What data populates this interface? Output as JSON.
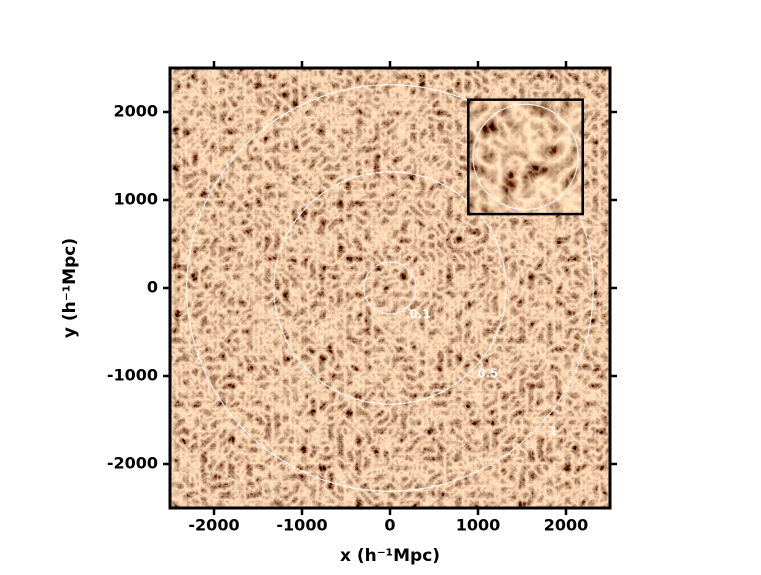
{
  "chart_data": {
    "type": "density-map",
    "xlabel": "x (h⁻¹Mpc)",
    "ylabel": "y (h⁻¹Mpc)",
    "xlim": [
      -2500,
      2500
    ],
    "ylim": [
      -2500,
      2500
    ],
    "xticks": [
      -2000,
      -1000,
      0,
      1000,
      2000
    ],
    "yticks": [
      -2000,
      -1000,
      0,
      1000,
      2000
    ],
    "circles": [
      {
        "label": 0.1,
        "radius": 295
      },
      {
        "label": 0.5,
        "radius": 1320
      },
      {
        "label": 1,
        "radius": 2310
      }
    ],
    "inset": {
      "x": [
        890,
        2190
      ],
      "y": [
        840,
        2140
      ]
    }
  }
}
